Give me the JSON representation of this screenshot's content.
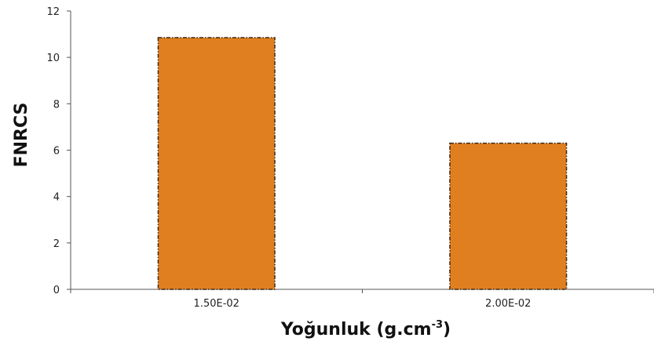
{
  "chart_data": {
    "type": "bar",
    "categories": [
      "1.50E-02",
      "2.00E-02"
    ],
    "values": [
      10.85,
      6.3
    ],
    "title": "",
    "xlabel": "Yoğunluk (g.cm",
    "xlabel_sup": "-3",
    "xlabel_close": ")",
    "ylabel": "FNRCS",
    "ylim": [
      0,
      12
    ],
    "yticks": [
      "0",
      "2",
      "4",
      "6",
      "8",
      "10",
      "12"
    ],
    "grid": false,
    "legend": "none",
    "bar_color": "#e07f1f",
    "bar_border_color": "#3a2a1a"
  }
}
